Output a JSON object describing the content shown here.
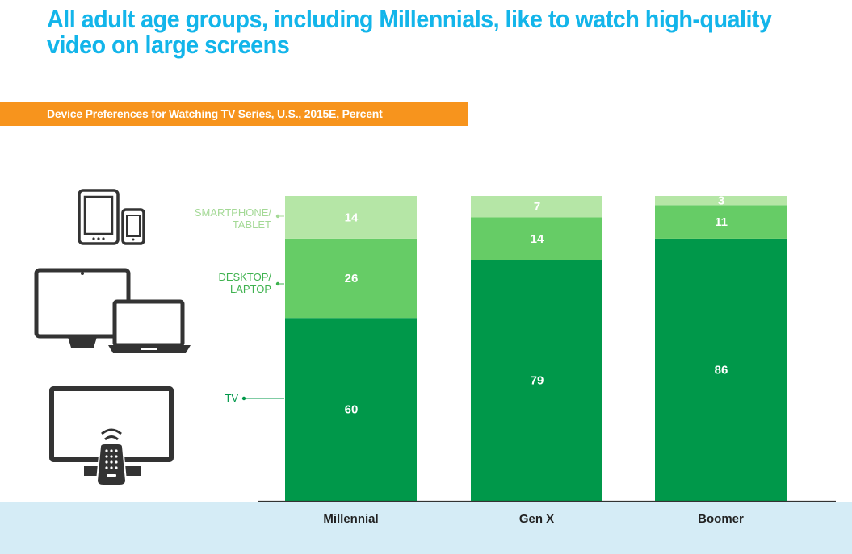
{
  "title": "All adult age groups, including Millennials, like to watch high-quality video on large screens",
  "subtitle": "Device Preferences for Watching TV Series, U.S., 2015E, Percent",
  "colors": {
    "title": "#13b5ea",
    "subtitle_bar": "#f7941d",
    "tv": "#00984a",
    "desktop": "#66cc66",
    "smartphone": "#b5e6a6",
    "footer": "#d5ecf6"
  },
  "icons": [
    "tablet-smartphone-icon",
    "desktop-laptop-icon",
    "tv-remote-icon"
  ],
  "chart_data": {
    "type": "bar",
    "stacked": true,
    "categories": [
      "Millennial",
      "Gen X",
      "Boomer"
    ],
    "series": [
      {
        "name": "TV",
        "values": [
          60,
          79,
          86
        ],
        "color": "#00984a"
      },
      {
        "name": "DESKTOP/ LAPTOP",
        "values": [
          26,
          14,
          11
        ],
        "color": "#66cc66"
      },
      {
        "name": "SMARTPHONE/ TABLET",
        "values": [
          14,
          7,
          3
        ],
        "color": "#b5e6a6"
      }
    ],
    "ylim": [
      0,
      100
    ],
    "legend": {
      "placement": "left",
      "entries": [
        {
          "series": "SMARTPHONE/ TABLET",
          "lines": [
            "SMARTPHONE/",
            "TABLET"
          ],
          "color": "#a4d996"
        },
        {
          "series": "DESKTOP/ LAPTOP",
          "lines": [
            "DESKTOP/",
            "LAPTOP"
          ],
          "color": "#3fb24f"
        },
        {
          "series": "TV",
          "lines": [
            "TV"
          ],
          "color": "#00984a"
        }
      ]
    },
    "grid": false
  }
}
